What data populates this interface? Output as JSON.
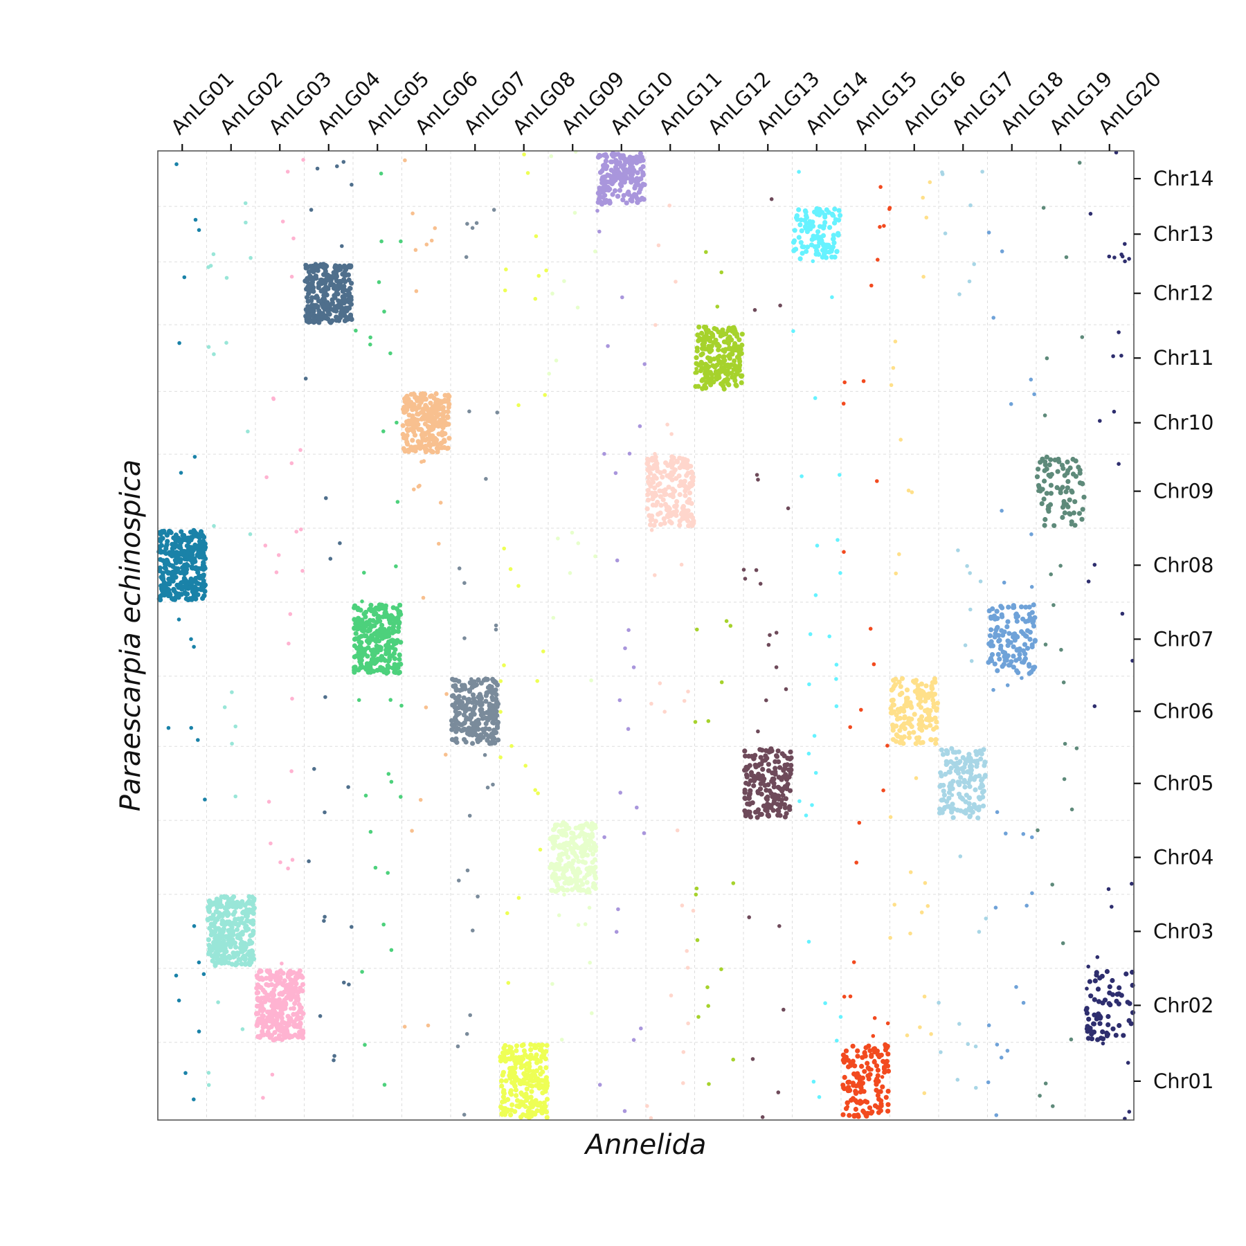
{
  "chart_data": {
    "type": "scatter",
    "title": "",
    "xlabel": "Annelida",
    "ylabel": "Paraescarpia echinospica",
    "grid": true,
    "x_categories": [
      "AnLG01",
      "AnLG02",
      "AnLG03",
      "AnLG04",
      "AnLG05",
      "AnLG06",
      "AnLG07",
      "AnLG08",
      "AnLG09",
      "AnLG10",
      "AnLG11",
      "AnLG12",
      "AnLG13",
      "AnLG14",
      "AnLG15",
      "AnLG16",
      "AnLG17",
      "AnLG18",
      "AnLG19",
      "AnLG20"
    ],
    "y_categories": [
      "Chr01",
      "Chr02",
      "Chr03",
      "Chr04",
      "Chr05",
      "Chr06",
      "Chr07",
      "Chr08",
      "Chr09",
      "Chr10",
      "Chr11",
      "Chr12",
      "Chr13",
      "Chr14"
    ],
    "x_block_bounds": [
      0,
      1,
      2,
      3,
      4,
      5,
      6,
      7,
      8,
      9,
      10,
      11,
      12,
      13,
      14,
      15,
      16,
      17,
      18,
      19,
      20
    ],
    "y_block_bounds": [
      0,
      1.05,
      2.05,
      3.05,
      4.05,
      5.05,
      6.0,
      7.0,
      8.0,
      9.0,
      9.85,
      10.75,
      11.6,
      12.35,
      13.1
    ],
    "colors": [
      "#1a82a8",
      "#99e6d8",
      "#ffb3d1",
      "#4f6f8c",
      "#4dd17c",
      "#f8c08f",
      "#7a8b9b",
      "#eeff55",
      "#e7ffcc",
      "#a996dc",
      "#ffd6cc",
      "#a6d22c",
      "#6e4a5a",
      "#66f2ff",
      "#f24a1f",
      "#ffe08a",
      "#a8d6e6",
      "#6fa2d8",
      "#5e8a7a",
      "#2e2e6e"
    ],
    "dense_blocks": [
      {
        "lg": "AnLG01",
        "chr": "Chr08",
        "points": 330
      },
      {
        "lg": "AnLG02",
        "chr": "Chr03",
        "points": 300
      },
      {
        "lg": "AnLG03",
        "chr": "Chr02",
        "points": 300
      },
      {
        "lg": "AnLG04",
        "chr": "Chr12",
        "points": 300
      },
      {
        "lg": "AnLG05",
        "chr": "Chr07",
        "points": 280
      },
      {
        "lg": "AnLG06",
        "chr": "Chr10",
        "points": 260
      },
      {
        "lg": "AnLG07",
        "chr": "Chr06",
        "points": 240
      },
      {
        "lg": "AnLG08",
        "chr": "Chr01",
        "points": 240
      },
      {
        "lg": "AnLG09",
        "chr": "Chr04",
        "points": 230
      },
      {
        "lg": "AnLG10",
        "chr": "Chr14",
        "points": 200
      },
      {
        "lg": "AnLG11",
        "chr": "Chr09",
        "points": 190
      },
      {
        "lg": "AnLG12",
        "chr": "Chr11",
        "points": 210
      },
      {
        "lg": "AnLG13",
        "chr": "Chr05",
        "points": 190
      },
      {
        "lg": "AnLG14",
        "chr": "Chr13",
        "points": 110
      },
      {
        "lg": "AnLG15",
        "chr": "Chr01",
        "points": 140
      },
      {
        "lg": "AnLG16",
        "chr": "Chr06",
        "points": 150
      },
      {
        "lg": "AnLG17",
        "chr": "Chr05",
        "points": 150
      },
      {
        "lg": "AnLG18",
        "chr": "Chr07",
        "points": 130
      },
      {
        "lg": "AnLG19",
        "chr": "Chr09",
        "points": 80
      },
      {
        "lg": "AnLG20",
        "chr": "Chr02",
        "points": 70
      }
    ]
  }
}
